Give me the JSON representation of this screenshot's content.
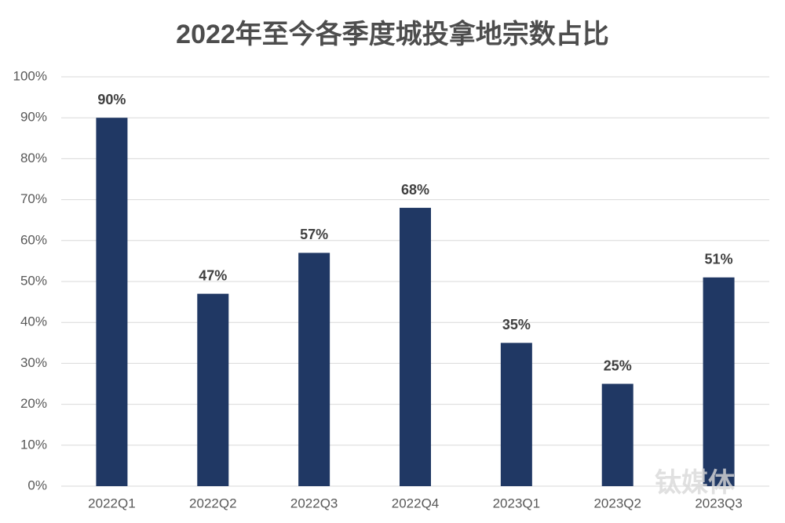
{
  "chart_data": {
    "type": "bar",
    "title": "2022年至今各季度城投拿地宗数占比",
    "categories": [
      "2022Q1",
      "2022Q2",
      "2022Q3",
      "2022Q4",
      "2023Q1",
      "2023Q2",
      "2023Q3"
    ],
    "values": [
      90,
      47,
      57,
      68,
      35,
      25,
      51
    ],
    "value_labels": [
      "90%",
      "47%",
      "57%",
      "68%",
      "35%",
      "25%",
      "51%"
    ],
    "color": "#203864",
    "ylim": [
      0,
      100
    ],
    "yticks": [
      {
        "value": 0,
        "label": "0%"
      },
      {
        "value": 10,
        "label": "10%"
      },
      {
        "value": 20,
        "label": "20%"
      },
      {
        "value": 30,
        "label": "30%"
      },
      {
        "value": 40,
        "label": "40%"
      },
      {
        "value": 50,
        "label": "50%"
      },
      {
        "value": 60,
        "label": "60%"
      },
      {
        "value": 70,
        "label": "70%"
      },
      {
        "value": 80,
        "label": "80%"
      },
      {
        "value": 90,
        "label": "90%"
      },
      {
        "value": 100,
        "label": "100%"
      }
    ],
    "grid": true,
    "watermark": "钛媒体"
  }
}
